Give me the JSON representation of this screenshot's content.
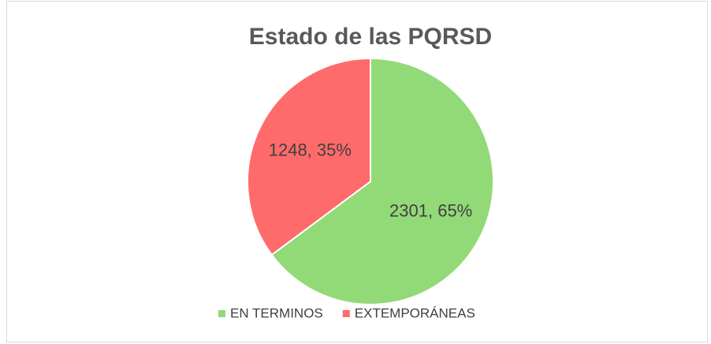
{
  "chart_data": {
    "type": "pie",
    "title": "Estado de las PQRSD",
    "categories": [
      "EN TERMINOS",
      "EXTEMPORÁNEAS"
    ],
    "values": [
      2301,
      1248
    ],
    "value_labels": [
      "2301, 65%",
      "1248, 35%"
    ],
    "colors": [
      "#92d977",
      "#ff6b6b"
    ],
    "legend": "bottom"
  }
}
